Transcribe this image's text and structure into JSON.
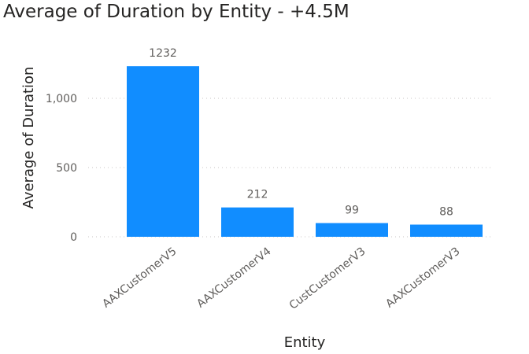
{
  "chart_data": {
    "type": "bar",
    "title": "Average of Duration by Entity - +4.5M",
    "xlabel": "Entity",
    "ylabel": "Average of Duration",
    "categories": [
      "AAXCustomerV5",
      "AAXCustomerV4",
      "CustCustomerV3",
      "AAXCustomerV3"
    ],
    "values": [
      1232,
      212,
      99,
      88
    ],
    "data_labels": [
      "1232",
      "212",
      "99",
      "88"
    ],
    "yticks": [
      0,
      500,
      1000
    ],
    "ytick_labels": [
      "0",
      "500",
      "1,000"
    ],
    "ylim": [
      0,
      1300
    ],
    "grid": true,
    "legend": "none",
    "bar_color": "#118DFF"
  }
}
